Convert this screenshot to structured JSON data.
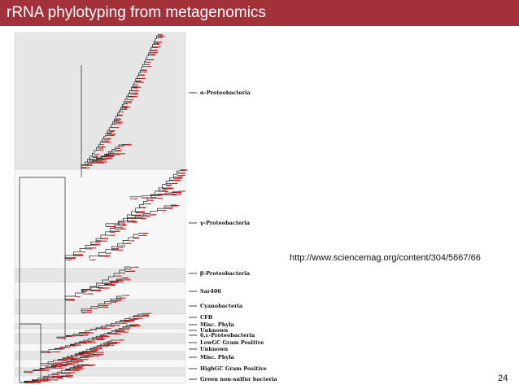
{
  "header": {
    "title": "rRNA phylotyping from metagenomics",
    "bg_color": "#a3313a"
  },
  "figure": {
    "band_colors": {
      "shaded": "#e6e6e6",
      "light": "#f7f7f7"
    },
    "leaf_color": "#d42020",
    "clades": [
      {
        "label": "α-Proteobacteria",
        "shade": "shaded"
      },
      {
        "label": "γ-Proteobacteria",
        "shade": "light"
      },
      {
        "label": "β-Proteobacteria",
        "shade": "shaded"
      },
      {
        "label": "Sar406",
        "shade": "light"
      },
      {
        "label": "Cyanobacteria",
        "shade": "shaded"
      },
      {
        "label": "CFB",
        "shade": "light"
      },
      {
        "label": "Misc. Phyla",
        "shade": "shaded"
      },
      {
        "label": "Unknown",
        "shade": "light"
      },
      {
        "label": "δ,ε-Proteobacteria",
        "shade": "shaded"
      },
      {
        "label": "LowGC Gram Positive",
        "shade": "light"
      },
      {
        "label": "Unknown",
        "shade": "shaded"
      },
      {
        "label": "Misc. Phyla",
        "shade": "light"
      },
      {
        "label": "HighGC Gram Positive",
        "shade": "shaded"
      },
      {
        "label": "Green non-sulfur bacteria",
        "shade": "light"
      }
    ]
  },
  "url": "http://www.sciencemag.org/content/304/5667/66",
  "slide_number": "24"
}
